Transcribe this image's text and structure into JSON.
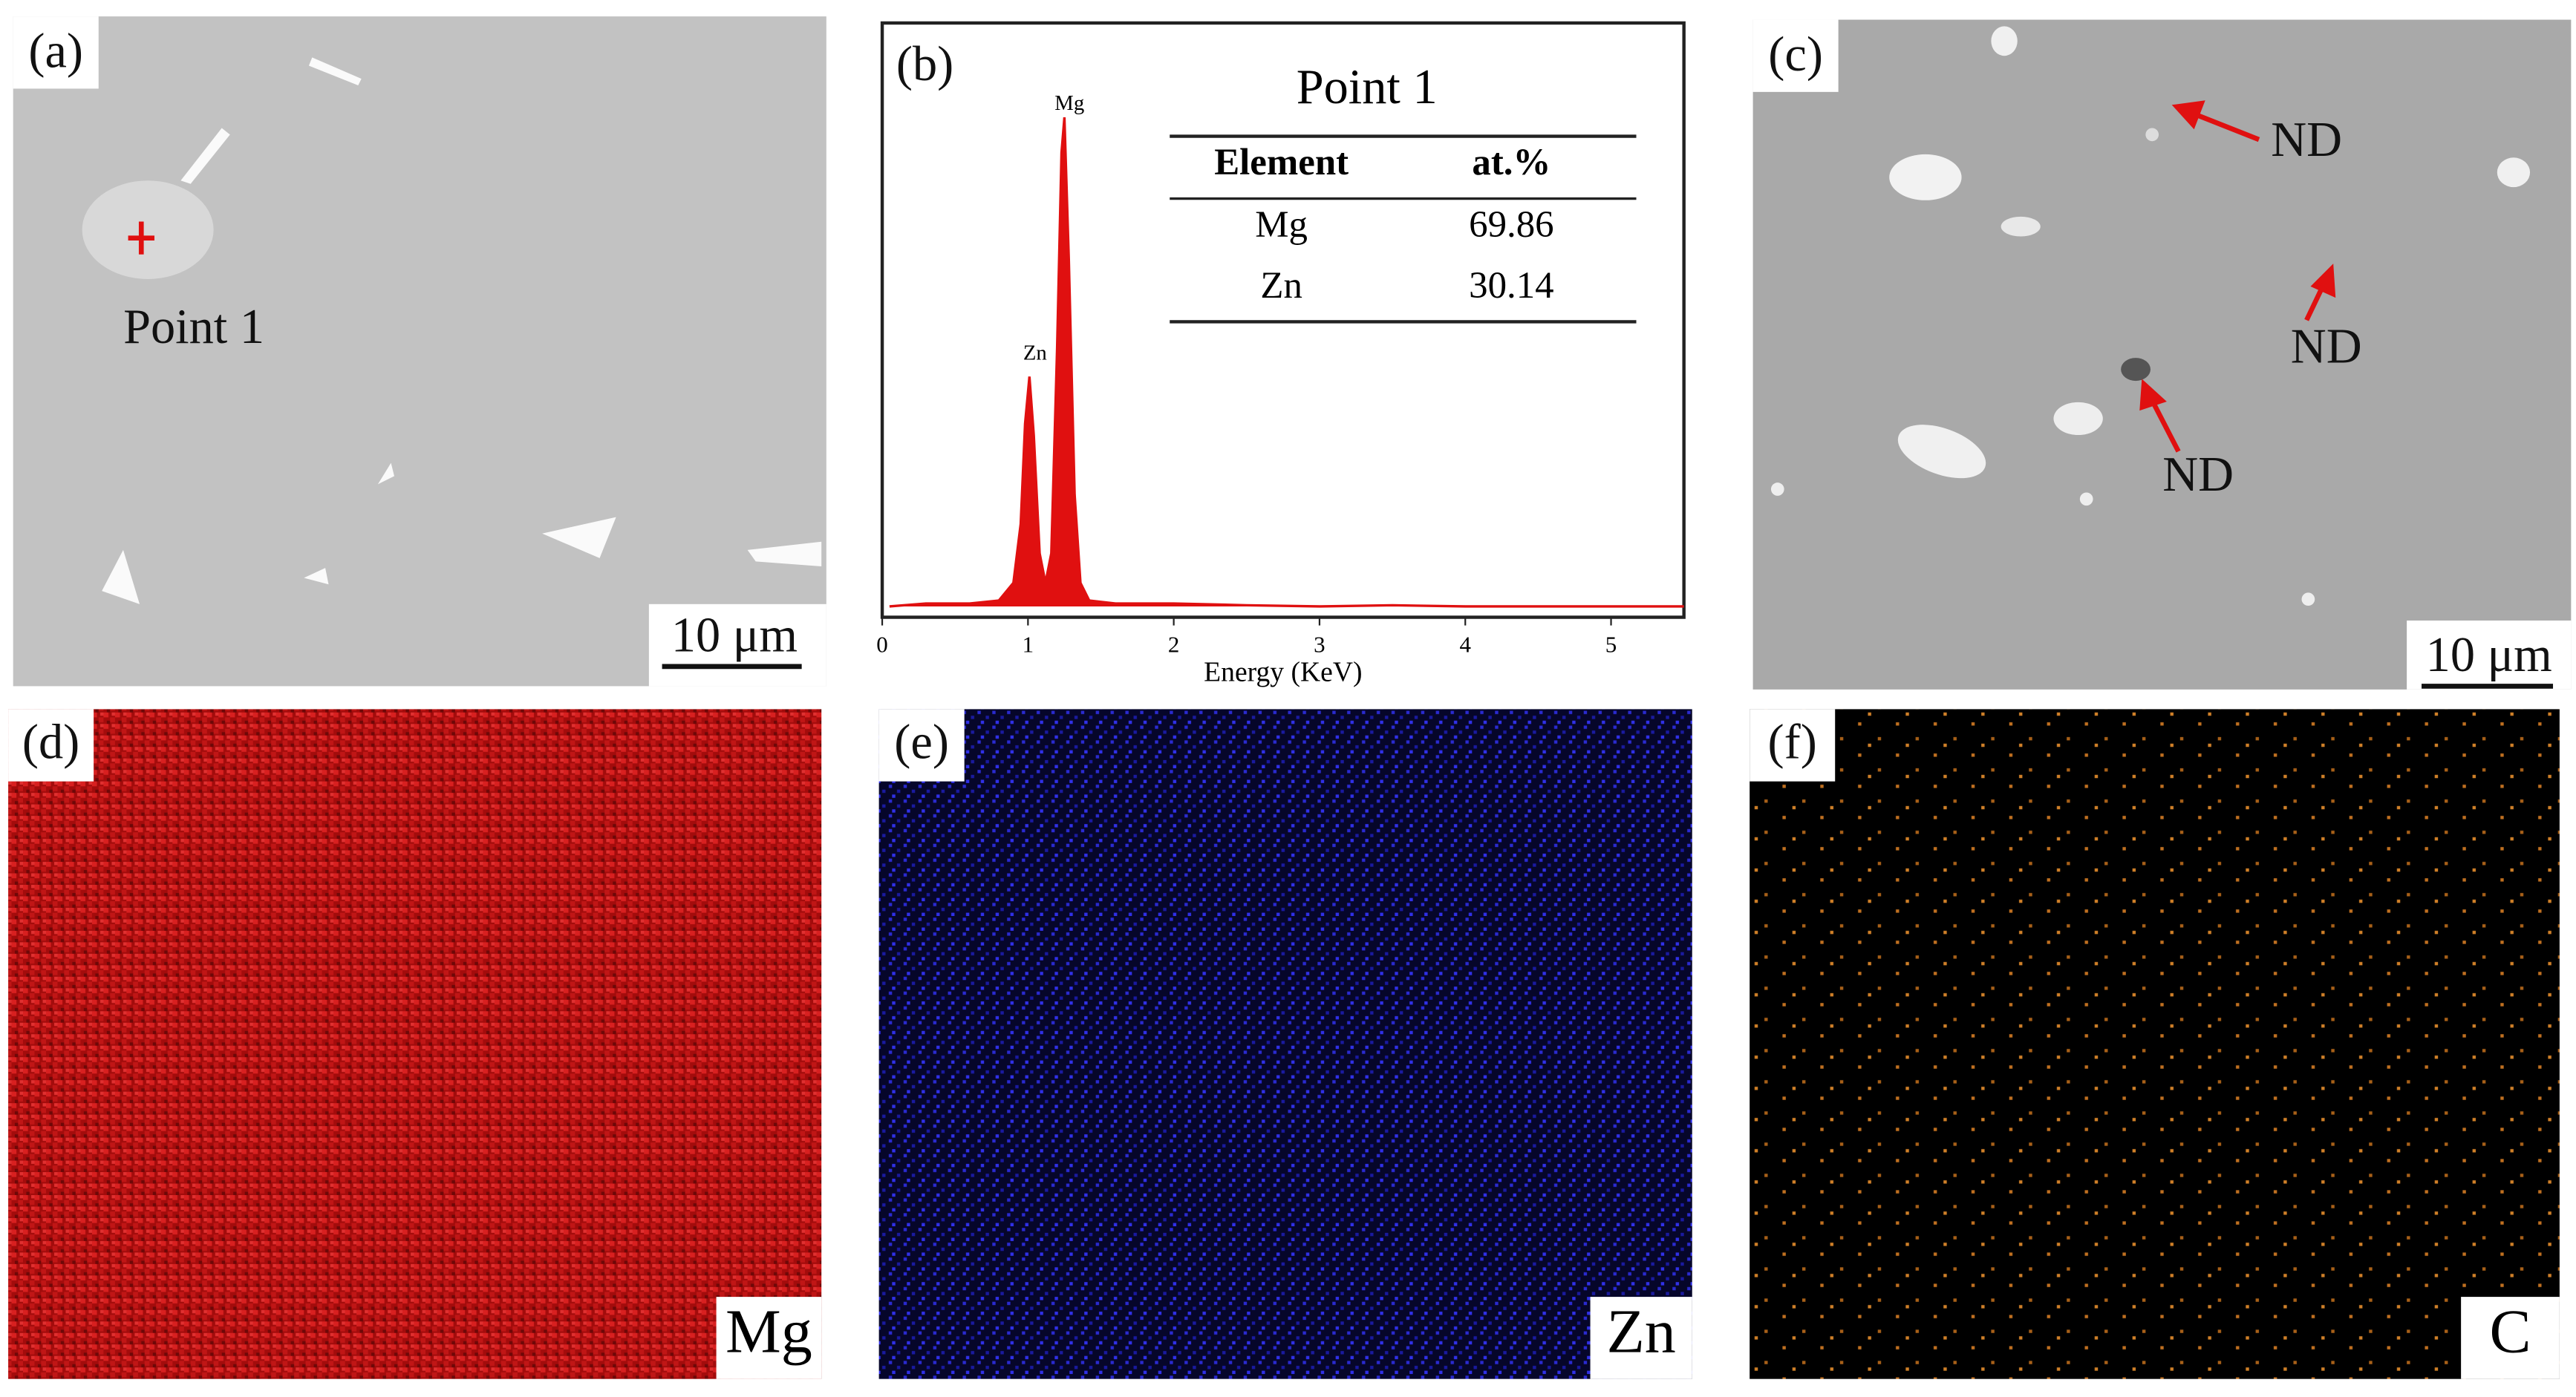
{
  "panels": [
    {
      "label": "(a)",
      "annotation": "Point 1",
      "scale_bar": "10 μm"
    },
    {
      "label": "(b)"
    },
    {
      "label": "(c)",
      "annotations": [
        "ND",
        "ND",
        "ND"
      ],
      "scale_bar": "10 μm"
    },
    {
      "label": "(d)",
      "element": "Mg"
    },
    {
      "label": "(e)",
      "element": "Zn"
    },
    {
      "label": "(f)",
      "element": "C"
    }
  ],
  "chart_data": {
    "type": "line",
    "xlabel": "Energy (KeV)",
    "color": "#e01010",
    "x": [
      0.05,
      0.3,
      0.6,
      0.8,
      0.9,
      0.95,
      0.98,
      1.01,
      1.04,
      1.08,
      1.12,
      1.16,
      1.2,
      1.23,
      1.25,
      1.28,
      1.32,
      1.36,
      1.42,
      1.6,
      2,
      2.5,
      3,
      3.5,
      4,
      4.5,
      5,
      5.5
    ],
    "values": [
      1,
      1.5,
      1.5,
      2,
      5,
      15,
      32,
      40,
      30,
      10,
      5,
      10,
      45,
      78,
      84,
      60,
      20,
      5,
      2,
      1.5,
      1.5,
      1.2,
      1,
      1.2,
      1,
      1,
      1,
      1
    ],
    "xlim": [
      0,
      5.5
    ],
    "ylim": [
      0,
      100
    ],
    "xticks": [
      0,
      1,
      2,
      3,
      4,
      5
    ],
    "peak_labels": [
      "Zn",
      "Mg"
    ],
    "table": {
      "title": "Point 1",
      "columns": [
        "Element",
        "at.%"
      ],
      "rows": [
        [
          "Mg",
          69.86
        ],
        [
          "Zn",
          30.14
        ]
      ]
    }
  }
}
